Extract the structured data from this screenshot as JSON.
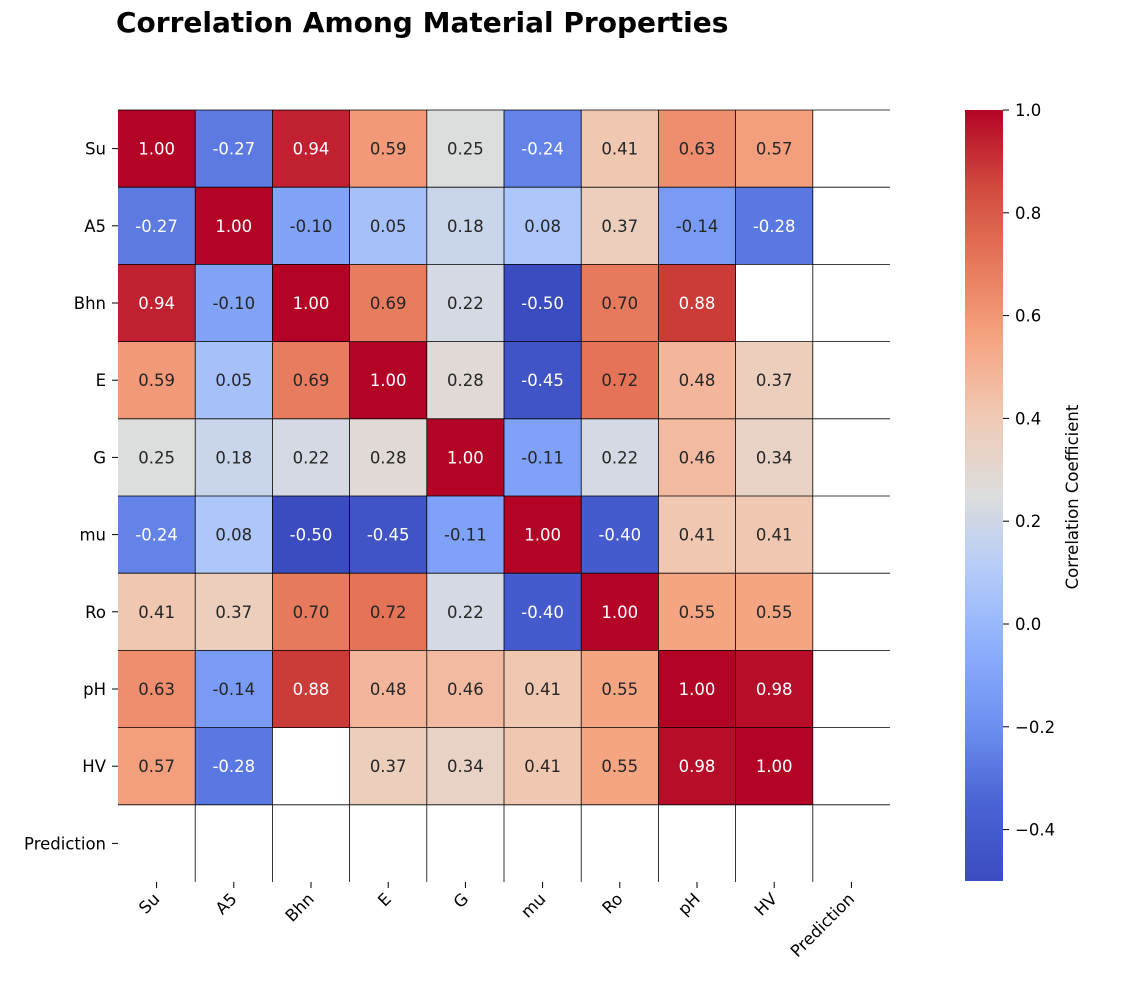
{
  "chart_data": {
    "type": "heatmap",
    "title": "Correlation Among Material Properties",
    "rows": [
      "Su",
      "A5",
      "Bhn",
      "E",
      "G",
      "mu",
      "Ro",
      "pH",
      "HV",
      "Prediction"
    ],
    "columns": [
      "Su",
      "A5",
      "Bhn",
      "E",
      "G",
      "mu",
      "Ro",
      "pH",
      "HV",
      "Prediction"
    ],
    "values": [
      [
        1.0,
        -0.27,
        0.94,
        0.59,
        0.25,
        -0.24,
        0.41,
        0.63,
        0.57,
        null
      ],
      [
        -0.27,
        1.0,
        -0.1,
        0.05,
        0.18,
        0.08,
        0.37,
        -0.14,
        -0.28,
        null
      ],
      [
        0.94,
        -0.1,
        1.0,
        0.69,
        0.22,
        -0.5,
        0.7,
        0.88,
        null,
        null
      ],
      [
        0.59,
        0.05,
        0.69,
        1.0,
        0.28,
        -0.45,
        0.72,
        0.48,
        0.37,
        null
      ],
      [
        0.25,
        0.18,
        0.22,
        0.28,
        1.0,
        -0.11,
        0.22,
        0.46,
        0.34,
        null
      ],
      [
        -0.24,
        0.08,
        -0.5,
        -0.45,
        -0.11,
        1.0,
        -0.4,
        0.41,
        0.41,
        null
      ],
      [
        0.41,
        0.37,
        0.7,
        0.72,
        0.22,
        -0.4,
        1.0,
        0.55,
        0.55,
        null
      ],
      [
        0.63,
        -0.14,
        0.88,
        0.48,
        0.46,
        0.41,
        0.55,
        1.0,
        0.98,
        null
      ],
      [
        0.57,
        -0.28,
        null,
        0.37,
        0.34,
        0.41,
        0.55,
        0.98,
        1.0,
        null
      ],
      [
        null,
        null,
        null,
        null,
        null,
        null,
        null,
        null,
        null,
        null
      ]
    ],
    "value_format": "2 decimals",
    "colormap": "coolwarm",
    "color_range": [
      -0.5,
      1.0
    ],
    "colorbar": {
      "label": "Correlation Coefficient",
      "ticks": [
        "1.0",
        "0.8",
        "0.6",
        "0.4",
        "0.2",
        "0.0",
        "−0.2",
        "−0.4"
      ],
      "tick_values": [
        1.0,
        0.8,
        0.6,
        0.4,
        0.2,
        0.0,
        -0.2,
        -0.4
      ]
    },
    "gridlines": true
  }
}
